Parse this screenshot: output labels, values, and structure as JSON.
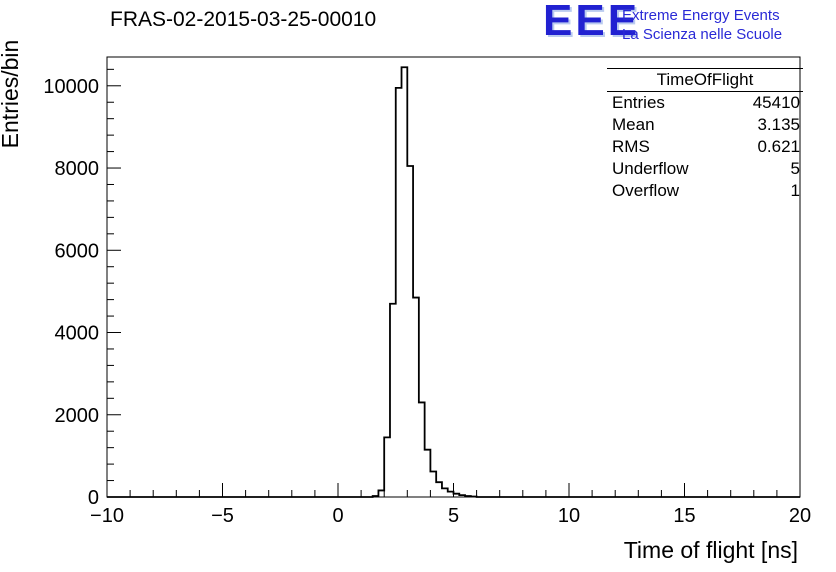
{
  "title": "FRAS-02-2015-03-25-00010",
  "logo": {
    "text": "EEE",
    "line1": "Extreme Energy Events",
    "line2": "La Scienza nelle Scuole",
    "color": "#2121d1"
  },
  "stats": {
    "title": "TimeOfFlight",
    "rows": [
      {
        "label": "Entries",
        "value": "45410"
      },
      {
        "label": "Mean",
        "value": "3.135"
      },
      {
        "label": "RMS",
        "value": "0.621"
      },
      {
        "label": "Underflow",
        "value": "5"
      },
      {
        "label": "Overflow",
        "value": "1"
      }
    ]
  },
  "chart_data": {
    "type": "bar",
    "subtype": "histogram",
    "title": "FRAS-02-2015-03-25-00010",
    "xlabel": "Time of flight [ns]",
    "ylabel": "Entries/bin",
    "xlim": [
      -10,
      20
    ],
    "ylim": [
      0,
      10700
    ],
    "x_ticks": [
      -10,
      -5,
      0,
      5,
      10,
      15,
      20
    ],
    "x_tick_labels": [
      "−10",
      "−5",
      "0",
      "5",
      "10",
      "15",
      "20"
    ],
    "x_minor_step": 1,
    "y_ticks": [
      0,
      2000,
      4000,
      6000,
      8000,
      10000
    ],
    "y_tick_labels": [
      "0",
      "2000",
      "4000",
      "6000",
      "8000",
      "10000"
    ],
    "y_minor_step": 400,
    "bin_start": 1.5,
    "bin_width": 0.25,
    "counts": [
      25,
      160,
      1450,
      4700,
      9950,
      10450,
      8050,
      4850,
      2300,
      1150,
      620,
      360,
      210,
      130,
      80,
      45,
      25,
      12
    ],
    "grid": false,
    "line_color": "#000000"
  }
}
